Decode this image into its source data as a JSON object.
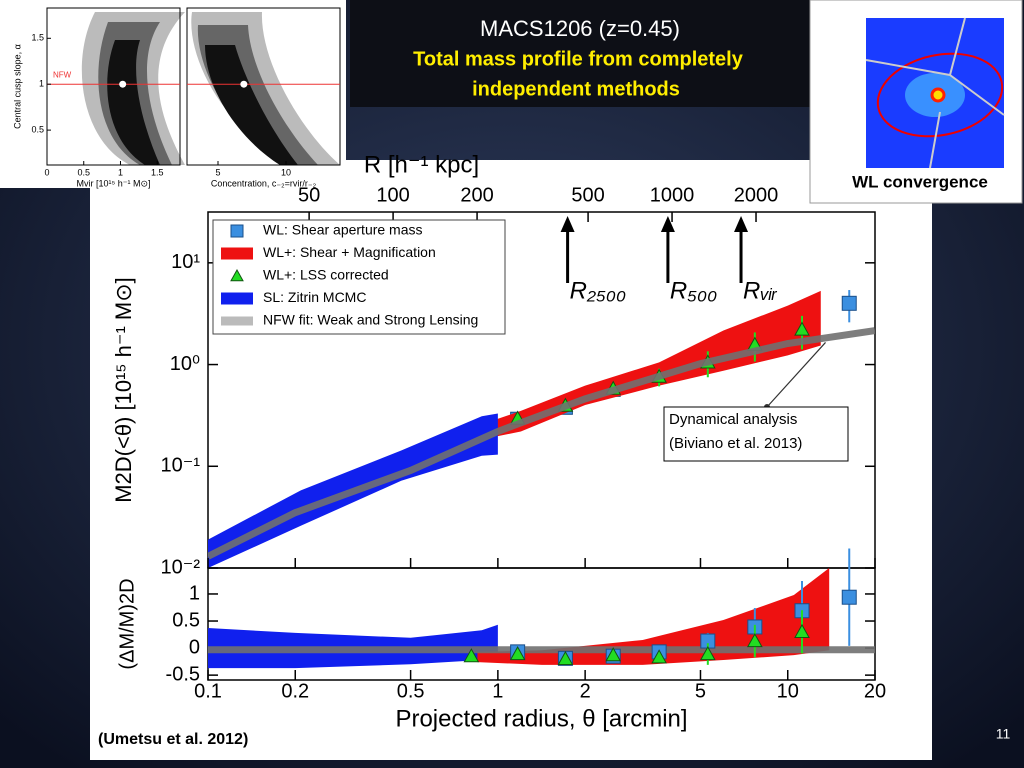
{
  "slide": {
    "title": "MACS1206 (z=0.45)",
    "subtitle_lines": [
      "Total mass profile from completely",
      "independent methods"
    ],
    "wl_label": "WL convergence",
    "citation": "(Umetsu et al. 2012)",
    "page_number": "11"
  },
  "chart_data": [
    {
      "type": "scatter",
      "xscale": "log",
      "yscale": "log",
      "xlim": [
        0.1,
        20
      ],
      "ylim": [
        0.01,
        31.6
      ],
      "yticks": [
        {
          "value": 0.01,
          "label": "10⁻²"
        },
        {
          "value": 0.1,
          "label": "10⁻¹"
        },
        {
          "value": 1,
          "label": "10⁰"
        },
        {
          "value": 10,
          "label": "10¹"
        }
      ],
      "ylabel": "M2D(<θ) [10¹⁵ h⁻¹ M⊙]",
      "x2label": "R [h⁻¹ kpc]",
      "x2lim": [
        21.7,
        5340
      ],
      "x2ticks": [
        50,
        100,
        200,
        500,
        1000,
        2000
      ],
      "legend": "upper left",
      "series": [
        {
          "name": "WL: Shear aperture mass",
          "kind": "scatter",
          "marker": "square",
          "color": "#3b8fe0",
          "x": [
            1.17,
            1.71,
            2.5,
            3.6,
            5.3,
            7.7,
            11.2,
            16.3
          ],
          "values": [
            0.29,
            0.38,
            0.57,
            0.8,
            1.28,
            1.97,
            2.96,
            4.0
          ],
          "errors": [
            0.02,
            0.03,
            0.04,
            0.06,
            0.15,
            0.4,
            0.7,
            1.4
          ]
        },
        {
          "name": "WL+: Shear + Magnification",
          "kind": "band",
          "color": "#ee1111",
          "x": [
            0.85,
            1.2,
            2,
            3.6,
            6,
            10,
            13
          ],
          "upper": [
            0.25,
            0.35,
            0.62,
            1.05,
            2.16,
            3.8,
            5.3
          ],
          "lower": [
            0.18,
            0.22,
            0.4,
            0.62,
            0.87,
            1.23,
            1.54
          ]
        },
        {
          "name": "WL+: LSS corrected",
          "kind": "scatter",
          "marker": "triangle",
          "color": "#22dd22",
          "x": [
            0.81,
            1.17,
            1.71,
            2.5,
            3.6,
            5.3,
            7.7,
            11.2
          ],
          "values": [
            0.196,
            0.295,
            0.395,
            0.58,
            0.76,
            1.05,
            1.57,
            2.21
          ],
          "errors": [
            0.02,
            0.03,
            0.04,
            0.06,
            0.15,
            0.3,
            0.5,
            0.8
          ]
        },
        {
          "name": "SL: Zitrin MCMC",
          "kind": "band",
          "color": "#1020ee",
          "x": [
            0.1,
            0.209,
            0.464,
            0.88,
            1.0
          ],
          "upper": [
            0.019,
            0.058,
            0.143,
            0.31,
            0.33
          ],
          "lower": [
            0.01,
            0.026,
            0.072,
            0.127,
            0.13
          ]
        },
        {
          "name": "NFW fit: Weak and Strong Lensing",
          "kind": "line",
          "color": "#707070",
          "x": [
            0.1,
            0.2,
            0.5,
            1,
            2,
            5,
            10,
            20
          ],
          "values": [
            0.013,
            0.035,
            0.091,
            0.22,
            0.46,
            1.02,
            1.61,
            2.16
          ]
        }
      ],
      "annotations": [
        {
          "label": "R₂₅₀₀",
          "x": 1.74,
          "kind": "arrow"
        },
        {
          "label": "R₅₀₀",
          "x": 3.86,
          "kind": "arrow"
        },
        {
          "label": "Rᵥᵢᵣ",
          "x": 6.9,
          "kind": "arrow"
        },
        {
          "kind": "box",
          "lines": [
            "Dynamical analysis",
            "(Biviano et al. 2013)"
          ],
          "x": 13.5,
          "y": 1.65
        }
      ]
    },
    {
      "type": "scatter",
      "xscale": "log",
      "yscale": "linear",
      "xlim": [
        0.1,
        20
      ],
      "ylim": [
        -0.59,
        1.48
      ],
      "xticks": [
        0.1,
        0.2,
        0.5,
        1,
        2,
        5,
        10,
        20
      ],
      "yticks": [
        -0.5,
        0,
        0.5,
        1
      ],
      "xlabel": "Projected radius, θ [arcmin]",
      "ylabel": "(ΔM/M)2D",
      "series": [
        {
          "kind": "band",
          "color": "#1020ee",
          "x": [
            0.1,
            0.2,
            0.5,
            0.88,
            1.0
          ],
          "upper": [
            0.37,
            0.28,
            0.19,
            0.33,
            0.43
          ],
          "lower": [
            -0.37,
            -0.37,
            -0.3,
            -0.22,
            -0.22
          ]
        },
        {
          "kind": "band",
          "color": "#ee1111",
          "x": [
            0.85,
            1.42,
            3.16,
            6.0,
            10.5,
            13.9
          ],
          "upper": [
            -0.07,
            -0.04,
            0.15,
            0.52,
            0.98,
            1.48
          ],
          "lower": [
            -0.26,
            -0.31,
            -0.31,
            -0.22,
            -0.13,
            -0.04
          ]
        },
        {
          "kind": "line",
          "color": "#707070",
          "x": [
            0.1,
            20
          ],
          "values": [
            -0.03,
            -0.03
          ]
        },
        {
          "kind": "scatter",
          "marker": "square",
          "color": "#3b8fe0",
          "x": [
            1.17,
            1.71,
            2.5,
            3.6,
            5.3,
            7.7,
            11.2,
            16.3
          ],
          "values": [
            -0.07,
            -0.19,
            -0.15,
            -0.07,
            0.13,
            0.39,
            0.69,
            0.94
          ],
          "errors": [
            0.05,
            0.06,
            0.08,
            0.1,
            0.15,
            0.35,
            0.55,
            0.9
          ]
        },
        {
          "kind": "scatter",
          "marker": "triangle",
          "color": "#22dd22",
          "x": [
            0.81,
            1.17,
            1.71,
            2.5,
            3.6,
            5.3,
            7.7,
            11.2
          ],
          "values": [
            -0.15,
            -0.11,
            -0.2,
            -0.13,
            -0.17,
            -0.11,
            0.13,
            0.3
          ],
          "errors": [
            0.04,
            0.05,
            0.06,
            0.07,
            0.1,
            0.2,
            0.3,
            0.4
          ]
        }
      ]
    },
    {
      "type": "contour",
      "ylabel": "Central cusp slope, α",
      "ylim": [
        0.12,
        1.83
      ],
      "yticks": [
        0.5,
        1,
        1.5
      ],
      "panels": [
        {
          "xlabel": "Mvir [10¹⁵ h⁻¹ M⊙]",
          "xlim": [
            0,
            1.81
          ],
          "xticks": [
            0,
            0.5,
            1,
            1.5
          ],
          "best": [
            1.03,
            1
          ]
        },
        {
          "xlabel": "Concentration, c₋₂=rvir/r₋₂",
          "xlim": [
            2.72,
            13.97
          ],
          "xticks": [
            5,
            10
          ],
          "best": [
            6.9,
            1
          ]
        }
      ],
      "reference": {
        "label": "NFW",
        "y": 1
      }
    }
  ]
}
